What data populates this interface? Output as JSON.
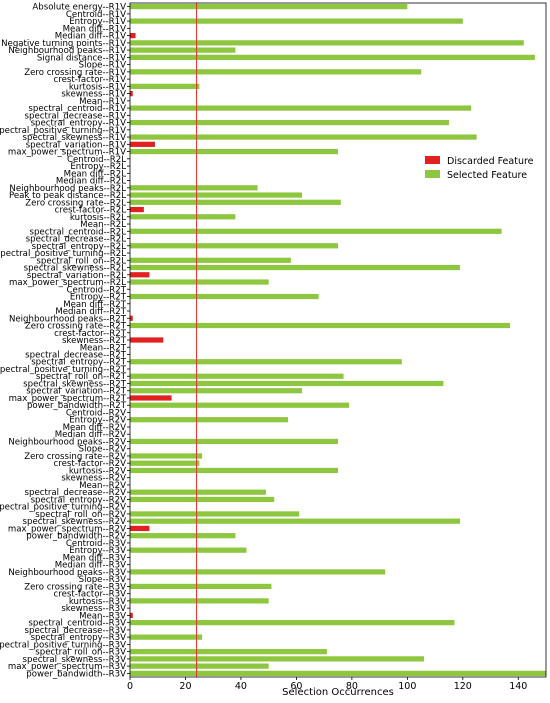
{
  "chart_data": {
    "type": "bar",
    "orientation": "horizontal",
    "xlabel": "Selection Occurrences",
    "ylabel": "",
    "xlim": [
      0,
      150
    ],
    "xticks": [
      0,
      20,
      40,
      60,
      80,
      100,
      120,
      140
    ],
    "threshold": 24,
    "threshold_color": "#e8302a",
    "legend_position": "upper-right",
    "series": [
      {
        "name": "Discarded Feature",
        "color": "#e0211f"
      },
      {
        "name": "Selected Feature",
        "color": "#8dc63f"
      }
    ],
    "categories": [
      "Absolute energy--R1V",
      "Centroid--R1V",
      "Entropy--R1V",
      "Mean diff--R1V",
      "Median diff--R1V",
      "Negative turning points--R1V",
      "Neighbourhood peaks--R1V",
      "Signal distance--R1V",
      "Slope--R1V",
      "Zero crossing rate--R1V",
      "crest-factor--R1V",
      "kurtosis--R1V",
      "skewness--R1V",
      "Mean--R1V",
      "spectral_centroid--R1V",
      "spectral_decrease--R1V",
      "spectral_entropy--R1V",
      "spectral_positive_turning--R1V",
      "spectral_skewness--R1V",
      "spectral_variation--R1V",
      "max_power_spectrum--R1V",
      "Centroid--R2L",
      "Entropy--R2L",
      "Mean diff--R2L",
      "Median diff--R2L",
      "Neighbourhood peaks--R2L",
      "Peak to peak distance--R2L",
      "Zero crossing rate--R2L",
      "crest-factor--R2L",
      "kurtosis--R2L",
      "Mean--R2L",
      "spectral_centroid--R2L",
      "spectral_decrease--R2L",
      "spectral_entropy--R2L",
      "spectral_positive_turning--R2L",
      "spectral_roll_on--R2L",
      "spectral_skewness--R2L",
      "spectral_variation--R2L",
      "max_power_spectrum--R2L",
      "Centroid--R2T",
      "Entropy--R2T",
      "Mean diff--R2T",
      "Median diff--R2T",
      "Neighbourhood peaks--R2T",
      "Zero crossing rate--R2T",
      "crest-factor--R2T",
      "skewness--R2T",
      "Mean--R2T",
      "spectral_decrease--R2T",
      "spectral_entropy--R2T",
      "spectral_positive_turning--R2T",
      "spectral_roll_on--R2T",
      "spectral_skewness--R2T",
      "spectral_variation--R2T",
      "max_power_spectrum--R2T",
      "power_bandwidth--R2T",
      "Centroid--R2V",
      "Entropy--R2V",
      "Mean diff--R2V",
      "Median diff--R2V",
      "Neighbourhood peaks--R2V",
      "Slope--R2V",
      "Zero crossing rate--R2V",
      "crest-factor--R2V",
      "kurtosis--R2V",
      "skewness--R2V",
      "Mean--R2V",
      "spectral_decrease--R2V",
      "spectral_entropy--R2V",
      "spectral_positive_turning--R2V",
      "spectral_roll_on--R2V",
      "spectral_skewness--R2V",
      "max_power_spectrum--R2V",
      "power_bandwidth--R2V",
      "Centroid--R3V",
      "Entropy--R3V",
      "Mean diff--R3V",
      "Median diff--R3V",
      "Neighbourhood peaks--R3V",
      "Slope--R3V",
      "Zero crossing rate--R3V",
      "crest-factor--R3V",
      "kurtosis--R3V",
      "skewness--R3V",
      "Mean--R3V",
      "spectral_centroid--R3V",
      "spectral_decrease--R3V",
      "spectral_entropy--R3V",
      "spectral_positive_turning--R3V",
      "spectral_roll_on--R3V",
      "spectral_skewness--R3V",
      "max_power_spectrum--R3V",
      "power_bandwidth--R3V"
    ],
    "values": [
      100,
      0,
      120,
      0,
      2,
      142,
      38,
      146,
      0,
      105,
      0,
      25,
      1,
      0,
      123,
      0,
      115,
      0,
      125,
      9,
      75,
      0,
      0,
      0,
      0,
      46,
      62,
      76,
      5,
      38,
      0,
      134,
      0,
      75,
      0,
      58,
      119,
      7,
      50,
      0,
      68,
      0,
      0,
      1,
      137,
      0,
      12,
      0,
      0,
      98,
      0,
      77,
      113,
      62,
      15,
      79,
      0,
      57,
      0,
      0,
      75,
      0,
      26,
      25,
      75,
      0,
      0,
      49,
      52,
      0,
      61,
      119,
      7,
      38,
      0,
      42,
      0,
      0,
      92,
      0,
      51,
      0,
      50,
      0,
      1,
      117,
      0,
      26,
      0,
      71,
      106,
      50,
      150
    ]
  }
}
